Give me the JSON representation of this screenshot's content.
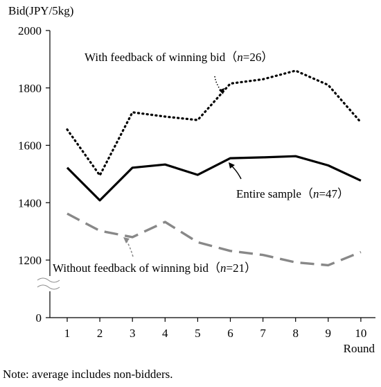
{
  "chart_data": {
    "type": "line",
    "ylabel": "Bid(JPY/5kg)",
    "xlabel": "Round",
    "x": [
      1,
      2,
      3,
      4,
      5,
      6,
      7,
      8,
      9,
      10
    ],
    "y_ticks": [
      "0",
      "1200",
      "1400",
      "1600",
      "1800",
      "2000"
    ],
    "y_break": "0–1100 axis break",
    "ylim": [
      1100,
      2000
    ],
    "grid": false,
    "series": [
      {
        "name": "With feedback of winning bid",
        "n": "n=26",
        "style": "dotted",
        "color": "#000000",
        "values": [
          1655,
          1495,
          1715,
          1700,
          1688,
          1815,
          1830,
          1860,
          1810,
          1680
        ]
      },
      {
        "name": "Entire sample",
        "n": "n=47",
        "style": "solid",
        "color": "#000000",
        "values": [
          1522,
          1408,
          1522,
          1533,
          1497,
          1555,
          1558,
          1562,
          1530,
          1477
        ]
      },
      {
        "name": "Without feedback of winning bid",
        "n": "n=21",
        "style": "dashed",
        "color": "#888888",
        "values": [
          1362,
          1302,
          1280,
          1333,
          1262,
          1232,
          1218,
          1192,
          1182,
          1228
        ]
      }
    ]
  },
  "labels": {
    "with_feedback": {
      "text": "With feedback of winning bid",
      "paren_open": "（",
      "n_var": "n",
      "n_val": "=26）"
    },
    "entire": {
      "text": "Entire sample",
      "paren_open": "（",
      "n_var": "n",
      "n_val": "=47）"
    },
    "without_feedback": {
      "text": "Without feedback of winning bid",
      "paren_open": "（",
      "n_var": "n",
      "n_val": "=21）"
    }
  },
  "note": "Note: average includes non-bidders."
}
